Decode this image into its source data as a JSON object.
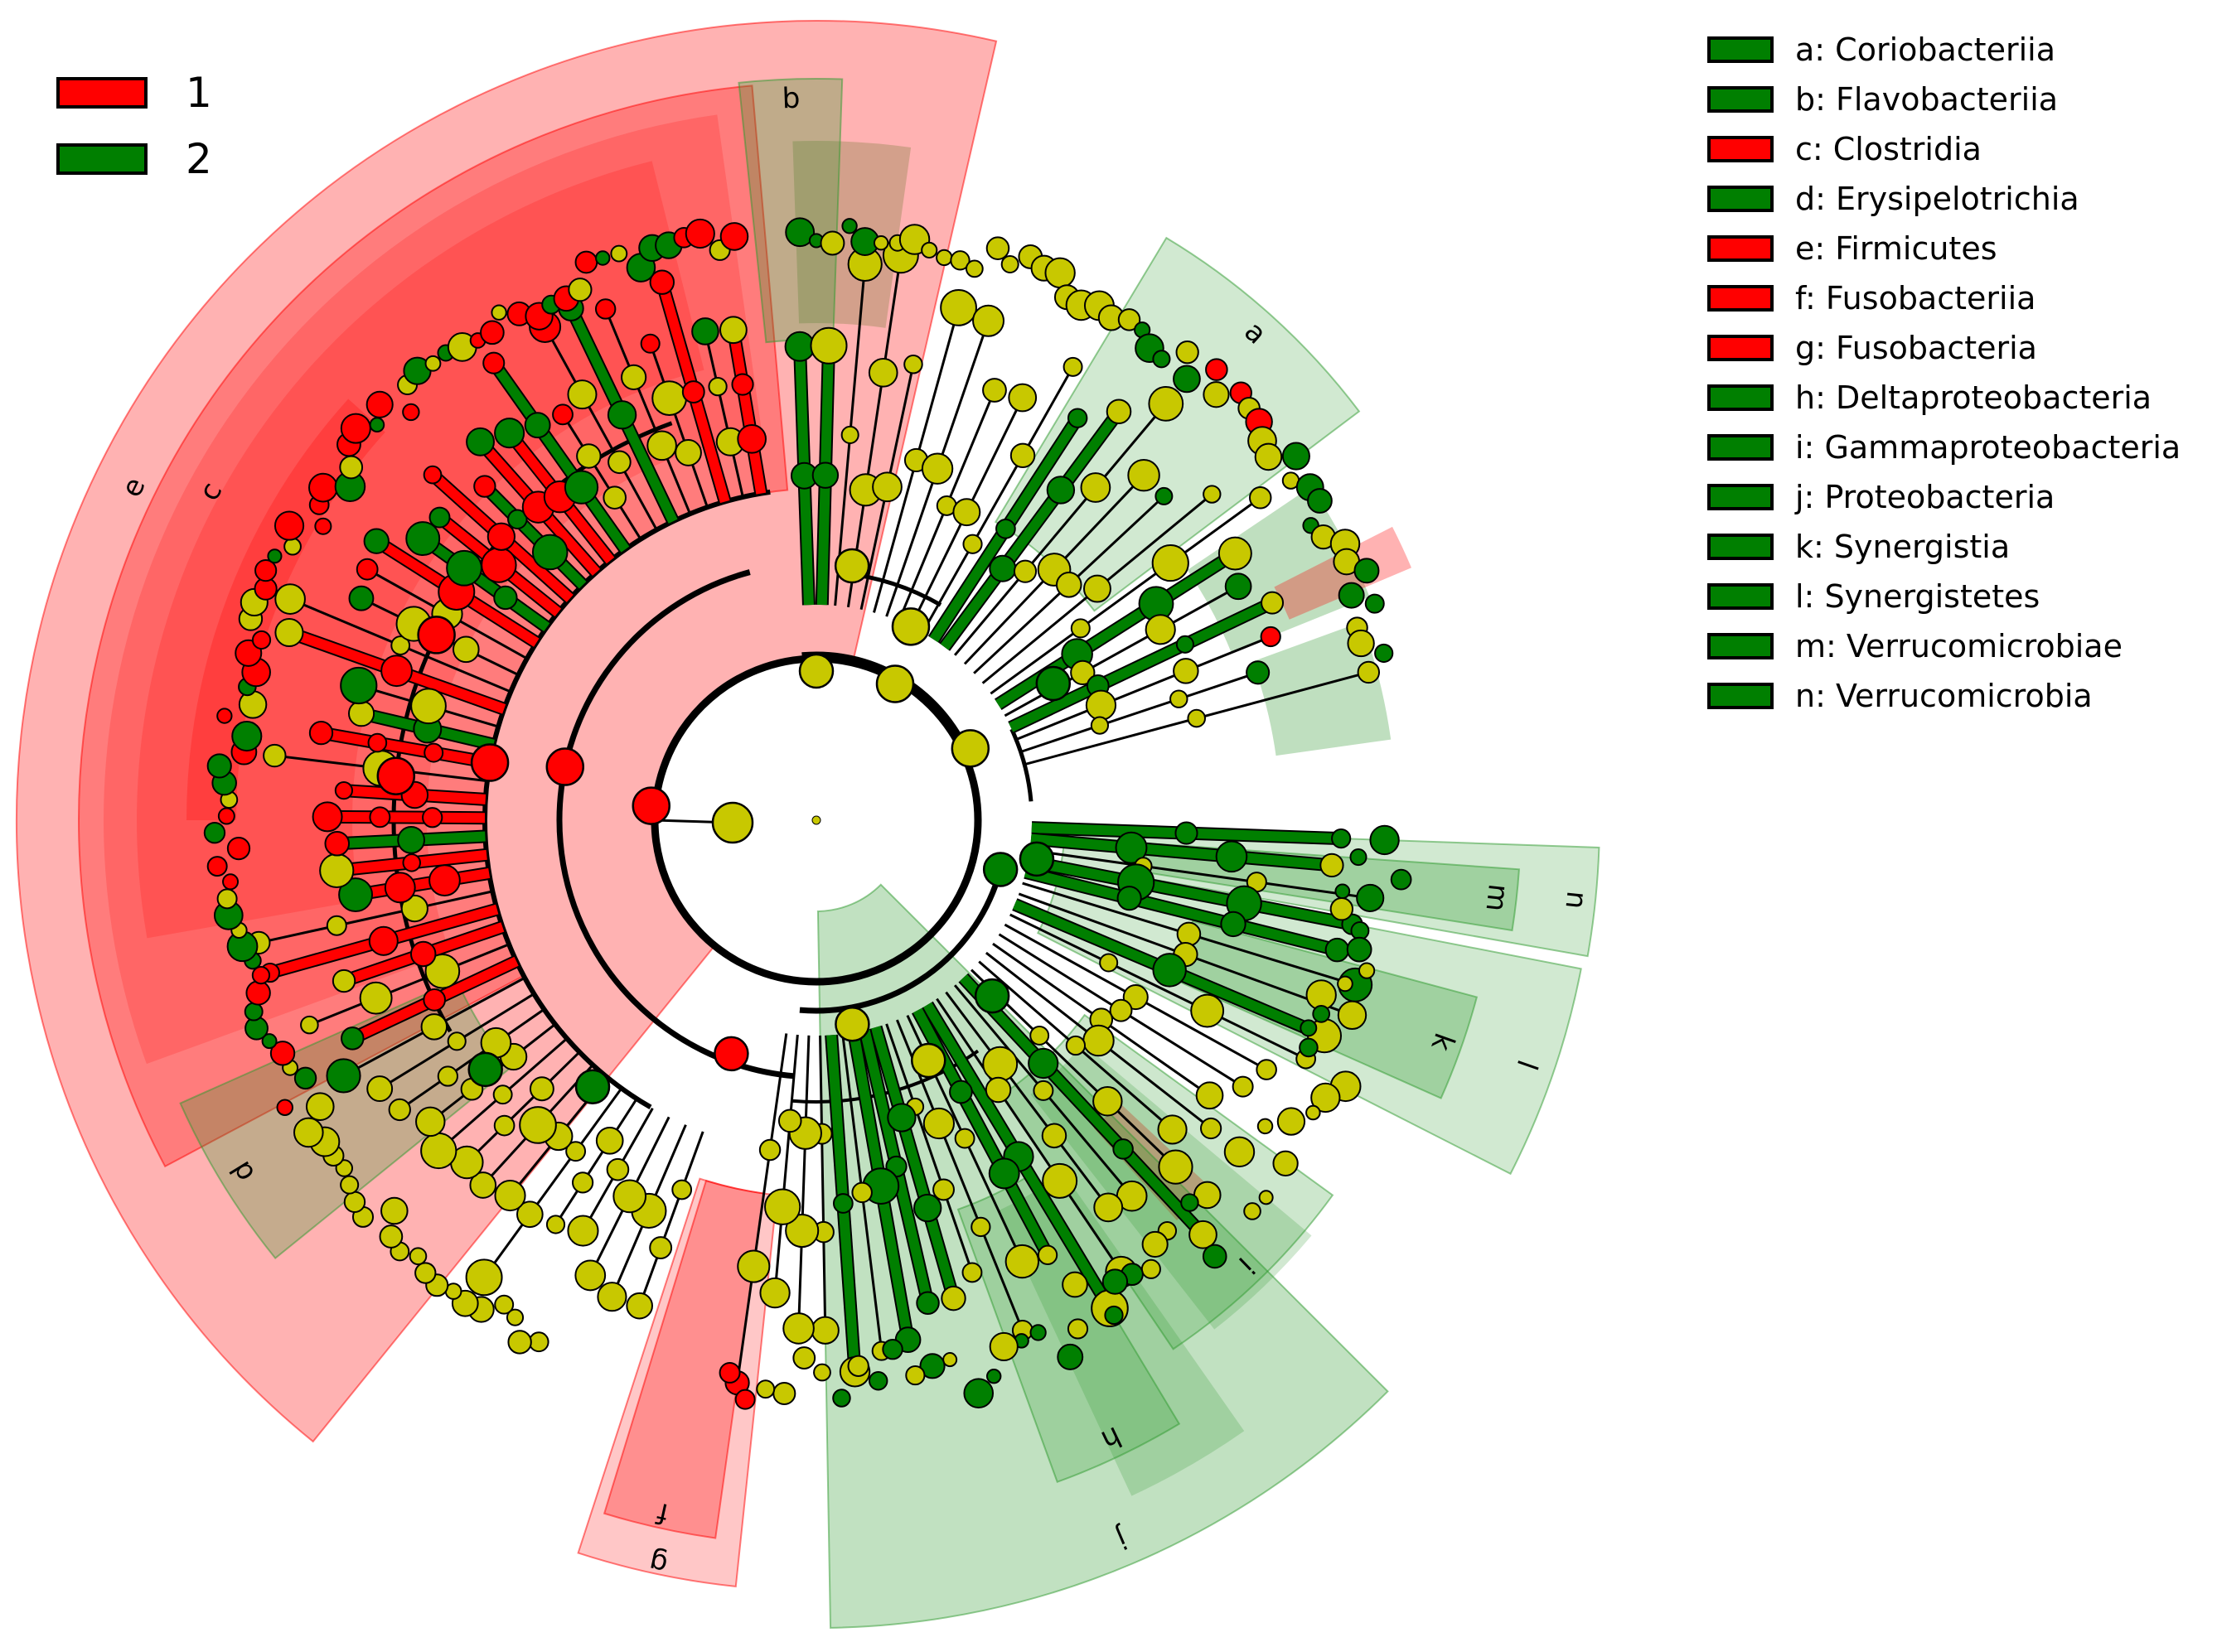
{
  "colors": {
    "group1": "#ff0000",
    "group2": "#007f00",
    "neutral": "#c8c800"
  },
  "group_legend": [
    {
      "label": "1",
      "color": "#ff0000"
    },
    {
      "label": "2",
      "color": "#007f00"
    }
  ],
  "clade_legend": [
    {
      "letter": "a",
      "label": "a: Coriobacteriia",
      "color": "#007f00",
      "group": "2"
    },
    {
      "letter": "b",
      "label": "b: Flavobacteriia",
      "color": "#007f00",
      "group": "2"
    },
    {
      "letter": "c",
      "label": "c: Clostridia",
      "color": "#ff0000",
      "group": "1"
    },
    {
      "letter": "d",
      "label": "d: Erysipelotrichia",
      "color": "#007f00",
      "group": "2"
    },
    {
      "letter": "e",
      "label": "e: Firmicutes",
      "color": "#ff0000",
      "group": "1"
    },
    {
      "letter": "f",
      "label": "f: Fusobacteriia",
      "color": "#ff0000",
      "group": "1"
    },
    {
      "letter": "g",
      "label": "g: Fusobacteria",
      "color": "#ff0000",
      "group": "1"
    },
    {
      "letter": "h",
      "label": "h: Deltaproteobacteria",
      "color": "#007f00",
      "group": "2"
    },
    {
      "letter": "i",
      "label": "i: Gammaproteobacteria",
      "color": "#007f00",
      "group": "2"
    },
    {
      "letter": "j",
      "label": "j: Proteobacteria",
      "color": "#007f00",
      "group": "2"
    },
    {
      "letter": "k",
      "label": "k: Synergistia",
      "color": "#007f00",
      "group": "2"
    },
    {
      "letter": "l",
      "label": "l: Synergistetes",
      "color": "#007f00",
      "group": "2"
    },
    {
      "letter": "m",
      "label": "m: Verrucomicrobiae",
      "color": "#007f00",
      "group": "2"
    },
    {
      "letter": "n",
      "label": "n: Verrucomicrobia",
      "color": "#007f00",
      "group": "2"
    }
  ],
  "sector_labels": [
    "a",
    "b",
    "c",
    "d",
    "e",
    "f",
    "g",
    "h",
    "i",
    "j",
    "k",
    "l",
    "m",
    "n"
  ]
}
